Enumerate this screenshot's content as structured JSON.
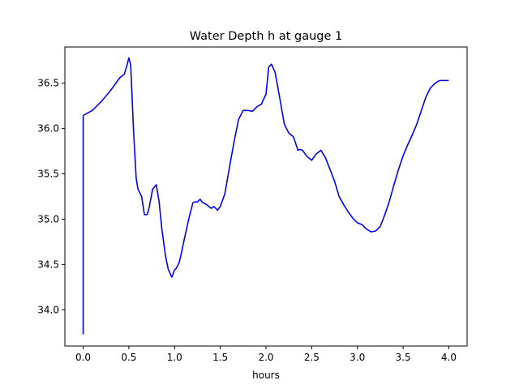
{
  "chart_data": {
    "type": "line",
    "title": "Water Depth h at gauge 1",
    "xlabel": "hours",
    "ylabel": "",
    "xlim": [
      -0.2,
      4.2
    ],
    "ylim": [
      33.6,
      36.9
    ],
    "xticks": [
      0.0,
      0.5,
      1.0,
      1.5,
      2.0,
      2.5,
      3.0,
      3.5,
      4.0
    ],
    "xtick_labels": [
      "0.0",
      "0.5",
      "1.0",
      "1.5",
      "2.0",
      "2.5",
      "3.0",
      "3.5",
      "4.0"
    ],
    "yticks": [
      34.0,
      34.5,
      35.0,
      35.5,
      36.0,
      36.5
    ],
    "ytick_labels": [
      "34.0",
      "34.5",
      "35.0",
      "35.5",
      "36.0",
      "36.5"
    ],
    "grid": false,
    "series": [
      {
        "name": "gauge 1",
        "color": "#0000ff",
        "x": [
          0.0,
          0.0,
          0.01,
          0.1,
          0.2,
          0.3,
          0.4,
          0.45,
          0.48,
          0.5,
          0.52,
          0.55,
          0.58,
          0.6,
          0.64,
          0.67,
          0.7,
          0.72,
          0.76,
          0.8,
          0.83,
          0.86,
          0.9,
          0.93,
          0.97,
          1.0,
          1.02,
          1.05,
          1.08,
          1.1,
          1.15,
          1.2,
          1.22,
          1.25,
          1.28,
          1.3,
          1.35,
          1.4,
          1.43,
          1.47,
          1.5,
          1.55,
          1.6,
          1.65,
          1.7,
          1.75,
          1.8,
          1.85,
          1.9,
          1.95,
          2.0,
          2.03,
          2.06,
          2.1,
          2.15,
          2.2,
          2.25,
          2.3,
          2.35,
          2.37,
          2.4,
          2.45,
          2.5,
          2.55,
          2.6,
          2.65,
          2.7,
          2.75,
          2.8,
          2.85,
          2.9,
          2.95,
          3.0,
          3.05,
          3.1,
          3.15,
          3.2,
          3.25,
          3.3,
          3.35,
          3.4,
          3.45,
          3.5,
          3.55,
          3.6,
          3.65,
          3.7,
          3.75,
          3.8,
          3.85,
          3.9,
          3.95,
          4.0
        ],
        "y": [
          33.73,
          36.14,
          36.15,
          36.2,
          36.3,
          36.42,
          36.56,
          36.6,
          36.7,
          36.78,
          36.7,
          36.0,
          35.45,
          35.33,
          35.25,
          35.05,
          35.05,
          35.12,
          35.33,
          35.38,
          35.2,
          34.9,
          34.6,
          34.45,
          34.36,
          34.44,
          34.46,
          34.52,
          34.65,
          34.75,
          34.98,
          35.18,
          35.19,
          35.19,
          35.22,
          35.19,
          35.16,
          35.12,
          35.14,
          35.1,
          35.14,
          35.28,
          35.57,
          35.85,
          36.1,
          36.2,
          36.2,
          36.19,
          36.24,
          36.27,
          36.38,
          36.68,
          36.71,
          36.62,
          36.34,
          36.05,
          35.95,
          35.91,
          35.76,
          35.77,
          35.76,
          35.69,
          35.65,
          35.72,
          35.76,
          35.68,
          35.55,
          35.42,
          35.25,
          35.16,
          35.08,
          35.01,
          34.96,
          34.94,
          34.89,
          34.86,
          34.87,
          34.92,
          35.05,
          35.2,
          35.38,
          35.55,
          35.7,
          35.82,
          35.93,
          36.05,
          36.2,
          36.35,
          36.45,
          36.5,
          36.53,
          36.53,
          36.53
        ]
      }
    ]
  }
}
